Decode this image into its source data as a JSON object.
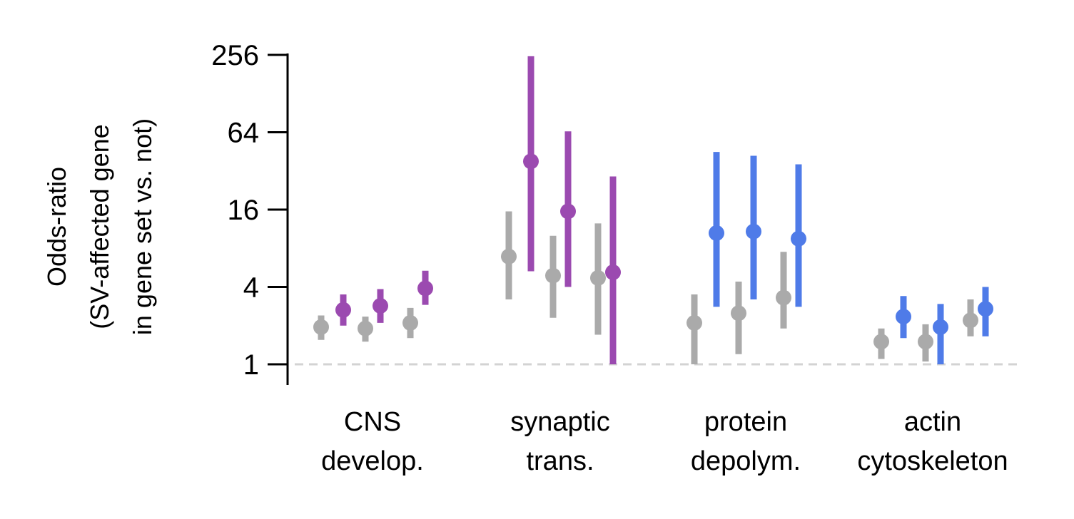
{
  "chart_data": {
    "type": "scatter",
    "ylabel_lines": [
      "Odds-ratio",
      "(SV-affected gene",
      "in gene set vs. not)"
    ],
    "y_scale": "log2",
    "ylim": [
      0.8,
      256
    ],
    "y_ticks": [
      1,
      4,
      16,
      64,
      256
    ],
    "y_tick_labels": [
      "1",
      "4",
      "16",
      "64",
      "256"
    ],
    "reference_line": 1,
    "colors": {
      "grey": "#aaaaaa",
      "purple": "#9b4ab0",
      "blue": "#4f7be8",
      "ref_line": "#d3d3d3"
    },
    "categories": [
      {
        "label_lines": [
          "CNS",
          "develop."
        ],
        "points": [
          {
            "color": "grey",
            "value": 1.95,
            "low": 1.55,
            "high": 2.4
          },
          {
            "color": "purple",
            "value": 2.65,
            "low": 2.0,
            "high": 3.5
          },
          {
            "color": "grey",
            "value": 1.9,
            "low": 1.5,
            "high": 2.35
          },
          {
            "color": "purple",
            "value": 2.85,
            "low": 2.1,
            "high": 3.85
          },
          {
            "color": "grey",
            "value": 2.1,
            "low": 1.6,
            "high": 2.75
          },
          {
            "color": "purple",
            "value": 3.9,
            "low": 2.9,
            "high": 5.35
          }
        ]
      },
      {
        "label_lines": [
          "synaptic",
          "trans."
        ],
        "points": [
          {
            "color": "grey",
            "value": 6.9,
            "low": 3.2,
            "high": 15.5
          },
          {
            "color": "purple",
            "value": 38,
            "low": 5.3,
            "high": 250
          },
          {
            "color": "grey",
            "value": 4.9,
            "low": 2.3,
            "high": 10.0
          },
          {
            "color": "purple",
            "value": 15.5,
            "low": 4.0,
            "high": 65
          },
          {
            "color": "grey",
            "value": 4.7,
            "low": 1.7,
            "high": 12.5
          },
          {
            "color": "purple",
            "value": 5.2,
            "low": 1.0,
            "high": 29
          }
        ]
      },
      {
        "label_lines": [
          "protein",
          "depolym."
        ],
        "points": [
          {
            "color": "grey",
            "value": 2.1,
            "low": 1.0,
            "high": 3.5
          },
          {
            "color": "blue",
            "value": 10.5,
            "low": 2.8,
            "high": 45
          },
          {
            "color": "grey",
            "value": 2.5,
            "low": 1.2,
            "high": 4.4
          },
          {
            "color": "blue",
            "value": 10.8,
            "low": 3.2,
            "high": 42
          },
          {
            "color": "grey",
            "value": 3.3,
            "low": 1.9,
            "high": 7.5
          },
          {
            "color": "blue",
            "value": 9.5,
            "low": 2.8,
            "high": 36
          }
        ]
      },
      {
        "label_lines": [
          "actin",
          "cytoskeleton"
        ],
        "points": [
          {
            "color": "grey",
            "value": 1.5,
            "low": 1.1,
            "high": 1.9
          },
          {
            "color": "blue",
            "value": 2.35,
            "low": 1.6,
            "high": 3.4
          },
          {
            "color": "grey",
            "value": 1.5,
            "low": 1.05,
            "high": 2.05
          },
          {
            "color": "blue",
            "value": 1.95,
            "low": 1.0,
            "high": 2.95
          },
          {
            "color": "grey",
            "value": 2.2,
            "low": 1.65,
            "high": 3.2
          },
          {
            "color": "blue",
            "value": 2.7,
            "low": 1.65,
            "high": 4.0
          }
        ]
      }
    ]
  }
}
